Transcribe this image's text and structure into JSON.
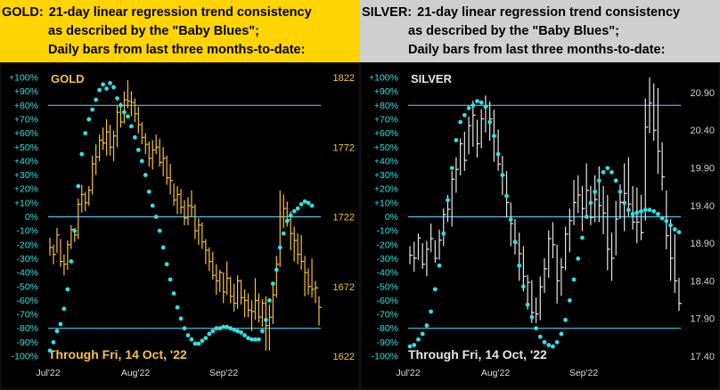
{
  "chart_data": [
    {
      "type": "bar",
      "panel": "gold",
      "header": {
        "line1_prefix": "GOLD:",
        "line1": "21-day linear regression trend consistency",
        "line2": "as described by the \"Baby Blues\";",
        "line3": "Daily bars from last three months-to-date:"
      },
      "title": "GOLD",
      "footnote": "Through Fri, 14 Oct, '22",
      "left_axis_ticks": [
        "+100%",
        "+90%",
        "+80%",
        "+70%",
        "+60%",
        "+50%",
        "+40%",
        "+30%",
        "+20%",
        "+10%",
        "0%",
        "-10%",
        "-20%",
        "-30%",
        "-40%",
        "-50%",
        "-60%",
        "-70%",
        "-80%",
        "-90%",
        "-100%"
      ],
      "right_axis_ticks": [
        "1822",
        "1772",
        "1722",
        "1672",
        "1622"
      ],
      "x_ticks": [
        "Jul'22",
        "Aug'22",
        "Sep'22"
      ],
      "price_range": [
        1622,
        1822
      ],
      "pct_range": [
        -100,
        100
      ],
      "ref_lines_pct": [
        80,
        0,
        -80
      ],
      "bar_color": "#f5c242",
      "dot_color": "#33e0e0",
      "line_color": "#4fc3e8",
      "bars": [
        [
          1707,
          1694,
          1700
        ],
        [
          1702,
          1688,
          1695
        ],
        [
          1714,
          1696,
          1709
        ],
        [
          1706,
          1686,
          1690
        ],
        [
          1695,
          1680,
          1688
        ],
        [
          1705,
          1684,
          1702
        ],
        [
          1716,
          1699,
          1713
        ],
        [
          1714,
          1704,
          1709
        ],
        [
          1735,
          1706,
          1731
        ],
        [
          1745,
          1725,
          1738
        ],
        [
          1740,
          1726,
          1732
        ],
        [
          1744,
          1730,
          1741
        ],
        [
          1766,
          1738,
          1760
        ],
        [
          1774,
          1752,
          1765
        ],
        [
          1781,
          1762,
          1777
        ],
        [
          1786,
          1770,
          1775
        ],
        [
          1792,
          1766,
          1783
        ],
        [
          1788,
          1766,
          1772
        ],
        [
          1784,
          1762,
          1780
        ],
        [
          1802,
          1772,
          1797
        ],
        [
          1804,
          1786,
          1790
        ],
        [
          1812,
          1789,
          1806
        ],
        [
          1820,
          1800,
          1805
        ],
        [
          1812,
          1794,
          1804
        ],
        [
          1807,
          1790,
          1796
        ],
        [
          1801,
          1782,
          1788
        ],
        [
          1790,
          1774,
          1779
        ],
        [
          1782,
          1767,
          1774
        ],
        [
          1776,
          1758,
          1764
        ],
        [
          1777,
          1756,
          1770
        ],
        [
          1781,
          1767,
          1772
        ],
        [
          1778,
          1758,
          1761
        ],
        [
          1772,
          1751,
          1764
        ],
        [
          1766,
          1745,
          1750
        ],
        [
          1760,
          1738,
          1748
        ],
        [
          1746,
          1730,
          1734
        ],
        [
          1744,
          1724,
          1738
        ],
        [
          1742,
          1724,
          1729
        ],
        [
          1734,
          1716,
          1721
        ],
        [
          1736,
          1716,
          1730
        ],
        [
          1741,
          1722,
          1729
        ],
        [
          1731,
          1706,
          1712
        ],
        [
          1721,
          1702,
          1716
        ],
        [
          1718,
          1699,
          1704
        ],
        [
          1706,
          1688,
          1698
        ],
        [
          1700,
          1683,
          1690
        ],
        [
          1697,
          1677,
          1680
        ],
        [
          1688,
          1666,
          1676
        ],
        [
          1684,
          1668,
          1682
        ],
        [
          1682,
          1660,
          1668
        ],
        [
          1690,
          1666,
          1678
        ],
        [
          1679,
          1660,
          1665
        ],
        [
          1674,
          1654,
          1660
        ],
        [
          1680,
          1656,
          1676
        ],
        [
          1677,
          1659,
          1664
        ],
        [
          1670,
          1650,
          1662
        ],
        [
          1667,
          1650,
          1655
        ],
        [
          1662,
          1640,
          1654
        ],
        [
          1678,
          1648,
          1662
        ],
        [
          1667,
          1646,
          1650
        ],
        [
          1663,
          1643,
          1660
        ],
        [
          1665,
          1626,
          1644
        ],
        [
          1659,
          1626,
          1650
        ],
        [
          1673,
          1645,
          1666
        ],
        [
          1694,
          1664,
          1688
        ],
        [
          1741,
          1686,
          1722
        ],
        [
          1738,
          1714,
          1728
        ],
        [
          1733,
          1715,
          1720
        ],
        [
          1726,
          1698,
          1710
        ],
        [
          1715,
          1690,
          1705
        ],
        [
          1710,
          1688,
          1695
        ],
        [
          1709,
          1684,
          1690
        ],
        [
          1694,
          1665,
          1682
        ],
        [
          1685,
          1666,
          1672
        ],
        [
          1692,
          1664,
          1670
        ],
        [
          1676,
          1660,
          1671
        ],
        [
          1665,
          1644,
          1657
        ]
      ],
      "blues": [
        [
          0,
          -96
        ],
        [
          1,
          -90
        ],
        [
          2,
          -82
        ],
        [
          3,
          -77
        ],
        [
          4,
          -66
        ],
        [
          5,
          -52
        ],
        [
          6,
          -32
        ],
        [
          7,
          -10
        ],
        [
          8,
          22
        ],
        [
          9,
          45
        ],
        [
          10,
          60
        ],
        [
          11,
          70
        ],
        [
          12,
          77
        ],
        [
          13,
          84
        ],
        [
          14,
          91
        ],
        [
          15,
          95
        ],
        [
          16,
          92
        ],
        [
          17,
          96
        ],
        [
          18,
          93
        ],
        [
          19,
          85
        ],
        [
          20,
          80
        ],
        [
          21,
          75
        ],
        [
          22,
          72
        ],
        [
          23,
          65
        ],
        [
          24,
          57
        ],
        [
          25,
          48
        ],
        [
          26,
          40
        ],
        [
          27,
          30
        ],
        [
          28,
          18
        ],
        [
          29,
          8
        ],
        [
          30,
          0
        ],
        [
          31,
          -10
        ],
        [
          32,
          -22
        ],
        [
          33,
          -34
        ],
        [
          34,
          -45
        ],
        [
          35,
          -55
        ],
        [
          36,
          -65
        ],
        [
          37,
          -73
        ],
        [
          38,
          -80
        ],
        [
          39,
          -85
        ],
        [
          40,
          -88
        ],
        [
          41,
          -91
        ],
        [
          42,
          -91
        ],
        [
          43,
          -89
        ],
        [
          44,
          -87
        ],
        [
          45,
          -84
        ],
        [
          46,
          -82
        ],
        [
          47,
          -80
        ],
        [
          48,
          -80
        ],
        [
          49,
          -79
        ],
        [
          50,
          -79
        ],
        [
          51,
          -80
        ],
        [
          52,
          -81
        ],
        [
          53,
          -82
        ],
        [
          54,
          -83
        ],
        [
          55,
          -85
        ],
        [
          56,
          -87
        ],
        [
          57,
          -88
        ],
        [
          58,
          -88
        ],
        [
          59,
          -88
        ],
        [
          60,
          -82
        ],
        [
          61,
          -74
        ],
        [
          62,
          -60
        ],
        [
          63,
          -48
        ],
        [
          64,
          -38
        ],
        [
          65,
          -22
        ],
        [
          66,
          -12
        ],
        [
          67,
          -3
        ],
        [
          68,
          1
        ],
        [
          69,
          4
        ],
        [
          70,
          6
        ],
        [
          71,
          9
        ],
        [
          72,
          11
        ],
        [
          73,
          10
        ],
        [
          74,
          8
        ]
      ]
    },
    {
      "type": "bar",
      "panel": "silver",
      "header": {
        "line1_prefix": "SILVER:",
        "line1": "21-day linear regression trend consistency",
        "line2": "as described by the \"Baby Blues\";",
        "line3": "Daily bars from last three months-to-date:"
      },
      "title": "SILVER",
      "footnote": "Through Fri, 14 Oct, '22",
      "left_axis_ticks": [
        "+100%",
        "+90%",
        "+80%",
        "+70%",
        "+60%",
        "+50%",
        "+40%",
        "+30%",
        "+20%",
        "+10%",
        "0%",
        "-10%",
        "-20%",
        "-30%",
        "-40%",
        "-50%",
        "-60%",
        "-70%",
        "-80%",
        "-90%",
        "-100%"
      ],
      "right_axis_ticks": [
        "20.90",
        "20.40",
        "19.90",
        "19.40",
        "18.90",
        "18.40",
        "17.90",
        "17.40"
      ],
      "x_ticks": [
        "Jul'22",
        "Aug'22",
        "Sep'22"
      ],
      "price_range": [
        17.4,
        21.1
      ],
      "pct_range": [
        -100,
        100
      ],
      "ref_lines_pct": [
        80,
        0,
        -80
      ],
      "bar_color": "#e6e6e6",
      "dot_color": "#33e0e0",
      "line_color": "#4fc3e8",
      "bars": [
        [
          18.86,
          18.62,
          18.74
        ],
        [
          18.92,
          18.52,
          18.7
        ],
        [
          19.03,
          18.68,
          18.97
        ],
        [
          18.9,
          18.56,
          18.62
        ],
        [
          18.93,
          18.46,
          18.82
        ],
        [
          19.16,
          18.78,
          18.96
        ],
        [
          18.94,
          18.64,
          18.7
        ],
        [
          19.08,
          18.68,
          18.94
        ],
        [
          19.36,
          18.86,
          19.28
        ],
        [
          19.54,
          19.18,
          19.35
        ],
        [
          19.86,
          19.12,
          19.75
        ],
        [
          20.04,
          19.57,
          19.88
        ],
        [
          20.29,
          19.8,
          20.22
        ],
        [
          20.38,
          19.86,
          20.0
        ],
        [
          20.58,
          20.08,
          20.46
        ],
        [
          20.79,
          20.18,
          20.6
        ],
        [
          20.54,
          20.04,
          20.22
        ],
        [
          20.68,
          20.16,
          20.55
        ],
        [
          20.86,
          20.37,
          20.72
        ],
        [
          20.78,
          20.26,
          20.55
        ],
        [
          20.67,
          19.98,
          20.32
        ],
        [
          20.41,
          19.86,
          19.95
        ],
        [
          20.06,
          19.54,
          19.8
        ],
        [
          19.86,
          19.24,
          19.44
        ],
        [
          19.44,
          18.86,
          19.16
        ],
        [
          19.22,
          18.75,
          18.9
        ],
        [
          19.04,
          18.4,
          18.76
        ],
        [
          18.86,
          18.26,
          18.46
        ],
        [
          18.48,
          18.02,
          18.38
        ],
        [
          18.41,
          17.84,
          17.98
        ],
        [
          18.18,
          17.84,
          17.96
        ],
        [
          18.46,
          17.88,
          18.32
        ],
        [
          18.7,
          18.24,
          18.56
        ],
        [
          19.07,
          18.44,
          18.96
        ],
        [
          19.18,
          18.7,
          18.88
        ],
        [
          18.88,
          18.1,
          18.4
        ],
        [
          18.7,
          18.2,
          18.58
        ],
        [
          19.12,
          18.54,
          19.02
        ],
        [
          19.36,
          18.78,
          19.2
        ],
        [
          19.74,
          19.14,
          19.44
        ],
        [
          19.8,
          19.3,
          19.54
        ],
        [
          19.66,
          19.06,
          19.36
        ],
        [
          19.96,
          19.26,
          19.6
        ],
        [
          19.66,
          19.14,
          19.24
        ],
        [
          19.8,
          19.18,
          19.48
        ],
        [
          19.92,
          19.18,
          19.4
        ],
        [
          19.66,
          19.02,
          19.3
        ],
        [
          19.54,
          18.54,
          18.82
        ],
        [
          19.04,
          18.4,
          18.7
        ],
        [
          19.46,
          18.74,
          19.22
        ],
        [
          19.68,
          19.22,
          19.44
        ],
        [
          19.96,
          19.06,
          19.56
        ],
        [
          20.04,
          19.26,
          19.42
        ],
        [
          19.66,
          19.08,
          19.18
        ],
        [
          19.64,
          18.9,
          19.18
        ],
        [
          19.54,
          18.94,
          19.04
        ],
        [
          20.82,
          19.2,
          20.44
        ],
        [
          21.1,
          20.36,
          20.76
        ],
        [
          21.02,
          20.26,
          20.4
        ],
        [
          20.96,
          19.82,
          20.12
        ],
        [
          20.24,
          19.6,
          19.78
        ],
        [
          19.6,
          18.82,
          19.0
        ],
        [
          19.22,
          18.4,
          18.7
        ],
        [
          19.02,
          18.24,
          18.4
        ],
        [
          18.44,
          18.0,
          18.1
        ]
      ],
      "blues": [
        [
          0,
          -93
        ],
        [
          1,
          -92
        ],
        [
          2,
          -88
        ],
        [
          3,
          -84
        ],
        [
          4,
          -78
        ],
        [
          5,
          -68
        ],
        [
          6,
          -52
        ],
        [
          7,
          -35
        ],
        [
          8,
          -12
        ],
        [
          9,
          12
        ],
        [
          10,
          35
        ],
        [
          11,
          55
        ],
        [
          12,
          68
        ],
        [
          13,
          73
        ],
        [
          14,
          78
        ],
        [
          15,
          80
        ],
        [
          16,
          83
        ],
        [
          17,
          82
        ],
        [
          18,
          79
        ],
        [
          19,
          68
        ],
        [
          20,
          58
        ],
        [
          21,
          45
        ],
        [
          22,
          30
        ],
        [
          23,
          15
        ],
        [
          24,
          -2
        ],
        [
          25,
          -18
        ],
        [
          26,
          -35
        ],
        [
          27,
          -50
        ],
        [
          28,
          -63
        ],
        [
          29,
          -72
        ],
        [
          30,
          -80
        ],
        [
          31,
          -86
        ],
        [
          32,
          -90
        ],
        [
          33,
          -92
        ],
        [
          34,
          -93
        ],
        [
          35,
          -90
        ],
        [
          36,
          -84
        ],
        [
          37,
          -74
        ],
        [
          38,
          -60
        ],
        [
          39,
          -45
        ],
        [
          40,
          -30
        ],
        [
          41,
          -15
        ],
        [
          42,
          0
        ],
        [
          43,
          10
        ],
        [
          44,
          18
        ],
        [
          45,
          26
        ],
        [
          46,
          32
        ],
        [
          47,
          35
        ],
        [
          48,
          32
        ],
        [
          49,
          26
        ],
        [
          50,
          18
        ],
        [
          51,
          10
        ],
        [
          52,
          5
        ],
        [
          53,
          2
        ],
        [
          54,
          3
        ],
        [
          55,
          4
        ],
        [
          56,
          5
        ],
        [
          57,
          5
        ],
        [
          58,
          4
        ],
        [
          59,
          2
        ],
        [
          60,
          -1
        ],
        [
          61,
          -3
        ],
        [
          62,
          -6
        ],
        [
          63,
          -9
        ],
        [
          64,
          -11
        ]
      ]
    }
  ]
}
